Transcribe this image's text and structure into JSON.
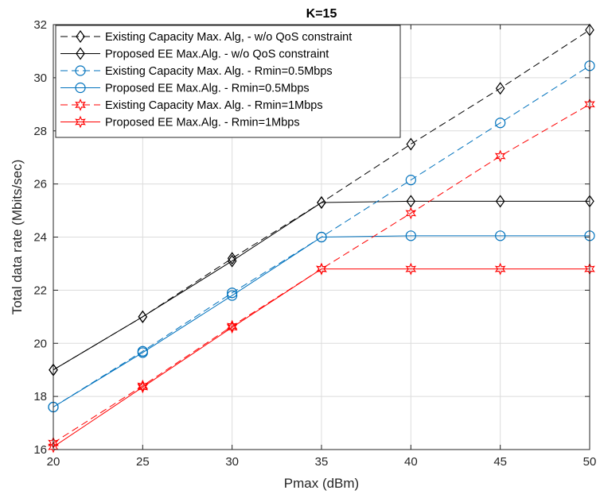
{
  "chart_data": {
    "type": "line",
    "title": "K=15",
    "xlabel": "Pmax (dBm)",
    "ylabel": "Total data rate (Mbits/sec)",
    "xlim": [
      20,
      50
    ],
    "ylim": [
      16,
      32
    ],
    "xticks": [
      20,
      25,
      30,
      35,
      40,
      45,
      50
    ],
    "yticks": [
      16,
      18,
      20,
      22,
      24,
      26,
      28,
      30,
      32
    ],
    "grid": true,
    "legend_position": "top-left",
    "x": [
      20,
      25,
      30,
      35,
      40,
      45,
      50
    ],
    "series": [
      {
        "name": "Existing Capacity Max. Alg, - w/o QoS constraint",
        "color": "#000000",
        "dash": "dashed",
        "marker": "diamond",
        "values": [
          19.0,
          21.0,
          23.2,
          25.3,
          27.5,
          29.6,
          31.8
        ]
      },
      {
        "name": "Proposed EE Max.Alg. - w/o QoS constraint",
        "color": "#000000",
        "dash": "solid",
        "marker": "diamond",
        "values": [
          19.0,
          21.0,
          23.1,
          25.3,
          25.35,
          25.35,
          25.35
        ]
      },
      {
        "name": "Existing Capacity Max. Alg. - Rmin=0.5Mbps",
        "color": "#0072BD",
        "dash": "dashed",
        "marker": "circle",
        "values": [
          17.6,
          19.7,
          21.9,
          24.0,
          26.15,
          28.3,
          30.45
        ]
      },
      {
        "name": "Proposed EE Max.Alg. - Rmin=0.5Mbps",
        "color": "#0072BD",
        "dash": "solid",
        "marker": "circle",
        "values": [
          17.6,
          19.65,
          21.8,
          24.0,
          24.05,
          24.05,
          24.05
        ]
      },
      {
        "name": "Existing Capacity Max. Alg. - Rmin=1Mbps",
        "color": "#FF0000",
        "dash": "dashed",
        "marker": "hexagram",
        "values": [
          16.25,
          18.4,
          20.65,
          22.8,
          24.9,
          27.05,
          29.0
        ]
      },
      {
        "name": "Proposed EE Max.Alg. - Rmin=1Mbps",
        "color": "#FF0000",
        "dash": "solid",
        "marker": "hexagram",
        "values": [
          16.1,
          18.35,
          20.6,
          22.8,
          22.8,
          22.8,
          22.8
        ]
      }
    ]
  }
}
